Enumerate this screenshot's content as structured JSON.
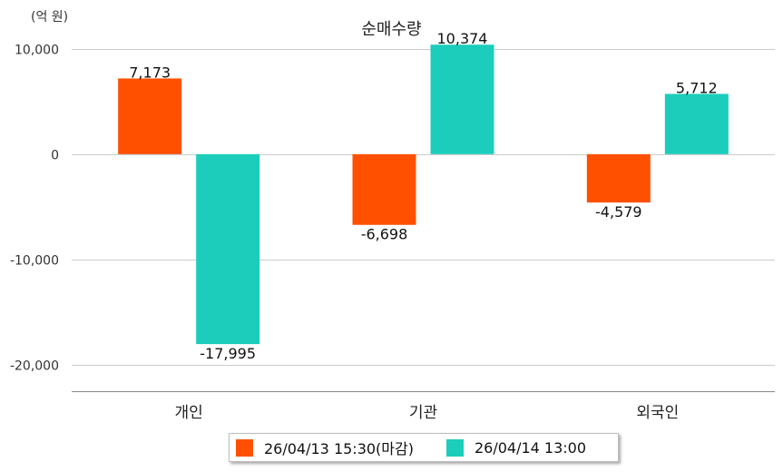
{
  "chart_data": {
    "type": "bar",
    "title": "순매수량",
    "unit_label": "(억 원)",
    "xlabel": "",
    "ylabel": "",
    "categories": [
      "개인",
      "기관",
      "외국인"
    ],
    "series": [
      {
        "name": "26/04/13 15:30(마감)",
        "color": "#ff5000",
        "values": [
          7173,
          -6698,
          -4579
        ],
        "labels": [
          "7,173",
          "-6,698",
          "-4,579"
        ]
      },
      {
        "name": "26/04/14 13:00",
        "color": "#1ccdbc",
        "values": [
          -17995,
          10374,
          5712
        ],
        "labels": [
          "-17,995",
          "10,374",
          "5,712"
        ]
      }
    ],
    "ylim": [
      -22500,
      12500
    ],
    "yticks": [
      10000,
      0,
      -10000,
      -20000
    ],
    "ytick_labels": [
      "10,000",
      "0",
      "-10,000",
      "-20,000"
    ],
    "grid": true,
    "legend_position": "bottom"
  }
}
